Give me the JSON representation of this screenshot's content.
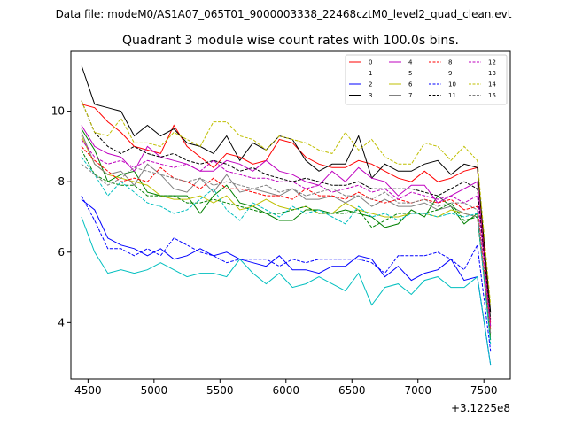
{
  "suptitle": "Data file: modeM0/AS1A07_065T01_9000003338_22468cztM0_level2_quad_clean.evt",
  "chart_data": {
    "type": "line",
    "title": "Quadrant 3 module wise count rates with 100.0s bins.",
    "xlabel": "",
    "ylabel": "",
    "x_offset_label": "+3.1225e8",
    "xlim": [
      4370,
      7700
    ],
    "ylim": [
      2.4,
      11.7
    ],
    "xticks": [
      4500,
      5000,
      5500,
      6000,
      6500,
      7000,
      7500
    ],
    "yticks": [
      4,
      6,
      8,
      10
    ],
    "xtick_labels": [
      "4500",
      "5000",
      "5500",
      "6000",
      "6500",
      "7000",
      "7500"
    ],
    "ytick_labels": [
      "4",
      "6",
      "8",
      "10"
    ],
    "legend_position": "upper right",
    "legend_columns": 4,
    "x": [
      4450,
      4550,
      4650,
      4750,
      4850,
      4950,
      5050,
      5150,
      5250,
      5350,
      5450,
      5550,
      5650,
      5750,
      5850,
      5950,
      6050,
      6150,
      6250,
      6350,
      6450,
      6550,
      6650,
      6750,
      6850,
      6950,
      7050,
      7150,
      7250,
      7350,
      7450,
      7550
    ],
    "series": [
      {
        "name": "0",
        "color": "#ff0000",
        "dash": "solid",
        "values": [
          10.2,
          10.1,
          9.7,
          9.4,
          9.0,
          8.9,
          8.8,
          9.6,
          9.0,
          8.7,
          8.4,
          8.8,
          8.7,
          8.5,
          8.6,
          9.2,
          9.1,
          8.7,
          8.5,
          8.4,
          8.4,
          8.6,
          8.5,
          8.3,
          8.1,
          8.0,
          8.3,
          8.0,
          8.1,
          8.3,
          8.4,
          4.0
        ]
      },
      {
        "name": "1",
        "color": "#008000",
        "dash": "solid",
        "values": [
          9.5,
          8.9,
          8.0,
          8.2,
          8.3,
          7.7,
          7.6,
          7.6,
          7.6,
          7.1,
          7.6,
          7.9,
          7.4,
          7.3,
          7.1,
          6.9,
          6.9,
          7.2,
          7.2,
          7.1,
          7.2,
          7.1,
          7.0,
          6.7,
          6.8,
          7.2,
          7.0,
          7.6,
          7.3,
          6.8,
          7.1,
          3.5
        ]
      },
      {
        "name": "2",
        "color": "#0000ff",
        "dash": "solid",
        "values": [
          7.5,
          7.2,
          6.4,
          6.2,
          6.1,
          5.9,
          6.1,
          5.8,
          5.9,
          6.1,
          5.9,
          6.0,
          5.8,
          5.7,
          5.6,
          5.9,
          5.5,
          5.5,
          5.4,
          5.6,
          5.6,
          5.9,
          5.8,
          5.3,
          5.6,
          5.2,
          5.4,
          5.5,
          5.8,
          5.2,
          5.3,
          2.8
        ]
      },
      {
        "name": "3",
        "color": "#000000",
        "dash": "solid",
        "values": [
          11.3,
          10.2,
          10.1,
          10.0,
          9.3,
          9.6,
          9.3,
          9.5,
          9.1,
          9.0,
          8.8,
          9.3,
          8.6,
          9.1,
          8.9,
          9.3,
          9.2,
          8.6,
          8.3,
          8.5,
          8.5,
          9.3,
          8.1,
          8.5,
          8.3,
          8.3,
          8.5,
          8.6,
          8.2,
          8.5,
          8.4,
          4.3
        ]
      },
      {
        "name": "4",
        "color": "#bf00bf",
        "dash": "solid",
        "values": [
          9.6,
          9.0,
          8.8,
          8.7,
          8.3,
          9.0,
          8.7,
          8.6,
          8.5,
          8.3,
          8.3,
          8.6,
          8.5,
          8.3,
          8.6,
          8.3,
          8.2,
          8.0,
          7.9,
          8.3,
          8.0,
          8.4,
          8.1,
          8.0,
          7.6,
          7.9,
          7.9,
          7.4,
          7.6,
          7.8,
          8.0,
          3.9
        ]
      },
      {
        "name": "5",
        "color": "#00bfbf",
        "dash": "solid",
        "values": [
          7.0,
          6.0,
          5.4,
          5.5,
          5.4,
          5.5,
          5.7,
          5.5,
          5.3,
          5.4,
          5.4,
          5.3,
          5.8,
          5.4,
          5.1,
          5.4,
          5.0,
          5.1,
          5.3,
          5.1,
          4.9,
          5.4,
          4.5,
          5.0,
          5.1,
          4.8,
          5.2,
          5.3,
          5.0,
          5.0,
          5.3,
          2.8
        ]
      },
      {
        "name": "6",
        "color": "#bfbf00",
        "dash": "solid",
        "values": [
          9.3,
          8.5,
          8.2,
          8.1,
          8.0,
          7.9,
          7.6,
          7.5,
          7.5,
          7.6,
          7.4,
          7.6,
          7.2,
          7.3,
          7.5,
          7.3,
          7.2,
          7.3,
          7.1,
          7.1,
          7.4,
          7.2,
          7.1,
          7.0,
          7.0,
          7.1,
          7.1,
          7.0,
          7.2,
          7.1,
          7.0,
          3.8
        ]
      },
      {
        "name": "7",
        "color": "#808080",
        "dash": "solid",
        "values": [
          9.4,
          8.5,
          8.2,
          8.3,
          7.9,
          8.5,
          8.2,
          7.8,
          7.7,
          8.1,
          7.7,
          8.2,
          7.7,
          7.8,
          7.7,
          7.6,
          7.8,
          7.5,
          7.5,
          7.6,
          7.4,
          7.6,
          7.3,
          7.5,
          7.3,
          7.3,
          7.4,
          7.2,
          7.3,
          7.1,
          7.0,
          3.7
        ]
      },
      {
        "name": "8",
        "color": "#ff0000",
        "dash": "dashed",
        "values": [
          9.0,
          8.6,
          8.3,
          8.0,
          8.1,
          8.0,
          8.4,
          8.1,
          8.0,
          7.8,
          8.1,
          7.8,
          7.8,
          7.7,
          7.6,
          7.6,
          7.5,
          7.8,
          7.6,
          7.6,
          7.5,
          7.7,
          7.5,
          7.4,
          7.5,
          7.4,
          7.5,
          7.4,
          7.5,
          7.2,
          7.3,
          3.8
        ]
      },
      {
        "name": "9",
        "color": "#008000",
        "dash": "dashed",
        "values": [
          8.9,
          8.2,
          8.0,
          7.9,
          7.9,
          7.6,
          7.6,
          7.6,
          7.4,
          7.4,
          7.5,
          7.4,
          7.3,
          7.2,
          7.1,
          7.1,
          7.2,
          7.3,
          7.1,
          7.1,
          7.1,
          7.2,
          6.7,
          6.9,
          7.1,
          7.1,
          7.1,
          7.2,
          7.4,
          6.9,
          7.0,
          3.6
        ]
      },
      {
        "name": "10",
        "color": "#0000ff",
        "dash": "dashed",
        "values": [
          7.6,
          6.9,
          6.1,
          6.1,
          5.9,
          6.1,
          5.9,
          6.4,
          6.2,
          6.0,
          5.9,
          5.7,
          5.8,
          5.8,
          5.8,
          5.6,
          5.8,
          5.7,
          5.8,
          5.8,
          5.8,
          5.8,
          5.7,
          5.4,
          5.9,
          5.9,
          5.9,
          6.0,
          5.8,
          5.5,
          6.2,
          3.2
        ]
      },
      {
        "name": "11",
        "color": "#000000",
        "dash": "dashed",
        "values": [
          10.3,
          9.4,
          9.0,
          8.8,
          9.0,
          8.8,
          8.7,
          8.8,
          8.6,
          8.5,
          8.6,
          8.5,
          8.3,
          8.4,
          8.2,
          8.1,
          8.0,
          8.1,
          8.0,
          7.9,
          7.9,
          8.0,
          7.8,
          7.8,
          7.8,
          7.8,
          7.7,
          7.6,
          7.8,
          8.0,
          7.8,
          4.1
        ]
      },
      {
        "name": "12",
        "color": "#bf00bf",
        "dash": "dashed",
        "values": [
          9.2,
          8.7,
          8.5,
          8.6,
          8.4,
          8.6,
          8.5,
          8.4,
          8.5,
          8.3,
          8.6,
          8.3,
          8.2,
          8.1,
          8.1,
          8.0,
          8.0,
          7.8,
          7.9,
          7.7,
          7.8,
          7.9,
          7.7,
          7.8,
          7.5,
          7.7,
          7.6,
          7.5,
          7.6,
          7.4,
          7.6,
          3.9
        ]
      },
      {
        "name": "13",
        "color": "#00bfbf",
        "dash": "dashed",
        "values": [
          8.7,
          8.2,
          7.6,
          8.0,
          7.7,
          7.4,
          7.3,
          7.1,
          7.2,
          7.5,
          7.8,
          7.2,
          6.9,
          7.4,
          7.2,
          7.0,
          7.3,
          7.1,
          7.2,
          7.0,
          6.8,
          7.3,
          7.0,
          7.1,
          6.9,
          7.1,
          7.1,
          7.0,
          7.1,
          7.0,
          7.1,
          3.4
        ]
      },
      {
        "name": "14",
        "color": "#bfbf00",
        "dash": "dashed",
        "values": [
          10.3,
          9.4,
          9.3,
          9.8,
          9.1,
          9.1,
          9.0,
          9.4,
          9.2,
          9.0,
          9.7,
          9.7,
          9.3,
          9.2,
          8.9,
          9.3,
          9.2,
          9.1,
          8.9,
          8.8,
          9.4,
          8.9,
          9.2,
          8.7,
          8.5,
          8.5,
          9.1,
          9.0,
          8.6,
          9.0,
          8.6,
          4.5
        ]
      },
      {
        "name": "15",
        "color": "#808080",
        "dash": "dashed",
        "values": [
          8.5,
          8.2,
          7.9,
          8.1,
          8.4,
          8.3,
          8.2,
          8.1,
          8.0,
          8.1,
          7.9,
          8.0,
          7.9,
          7.8,
          7.9,
          7.7,
          7.8,
          7.6,
          7.7,
          7.8,
          7.6,
          7.6,
          7.5,
          7.7,
          7.4,
          7.4,
          7.5,
          7.3,
          7.4,
          7.4,
          7.2,
          3.7
        ]
      }
    ]
  }
}
